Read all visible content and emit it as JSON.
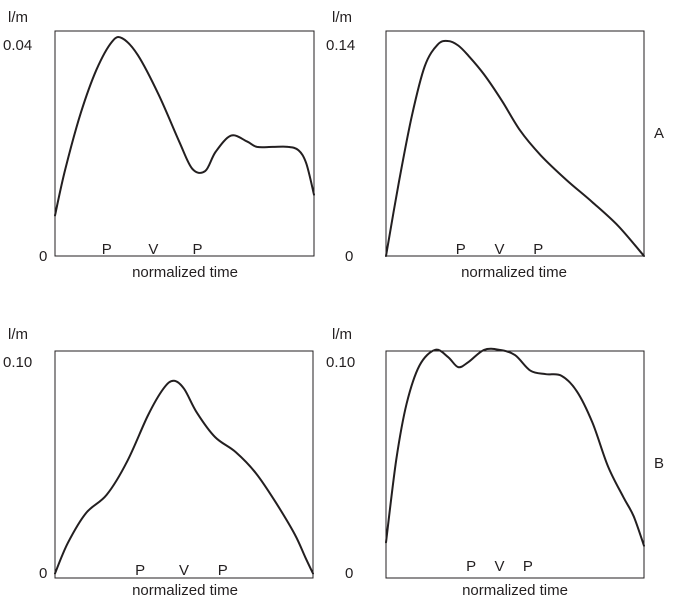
{
  "row_labels": [
    "A",
    "B"
  ],
  "chart_data": [
    {
      "type": "line",
      "title": "",
      "xlabel": "normalized time",
      "ylabel": "l/m",
      "xlim": [
        0,
        1
      ],
      "ylim": [
        0,
        0.04
      ],
      "y_ticks": [
        "0.04",
        "0"
      ],
      "markers": [
        {
          "label": "P",
          "x": 0.2
        },
        {
          "label": "V",
          "x": 0.38
        },
        {
          "label": "P",
          "x": 0.55
        }
      ],
      "x": [
        0,
        0.04,
        0.1,
        0.16,
        0.22,
        0.26,
        0.32,
        0.4,
        0.48,
        0.53,
        0.58,
        0.62,
        0.68,
        0.74,
        0.78,
        0.84,
        0.9,
        0.94,
        0.97,
        1.0
      ],
      "y": [
        0.0072,
        0.0155,
        0.0255,
        0.0331,
        0.0381,
        0.0387,
        0.0357,
        0.0287,
        0.0203,
        0.0155,
        0.0151,
        0.0185,
        0.0214,
        0.0204,
        0.0194,
        0.0194,
        0.0194,
        0.0188,
        0.0165,
        0.0109
      ]
    },
    {
      "type": "line",
      "title": "",
      "xlabel": "normalized time",
      "ylabel": "l/m",
      "xlim": [
        0,
        1
      ],
      "ylim": [
        0,
        0.14
      ],
      "y_ticks": [
        "0.14",
        "0"
      ],
      "markers": [
        {
          "label": "P",
          "x": 0.29
        },
        {
          "label": "V",
          "x": 0.44
        },
        {
          "label": "P",
          "x": 0.59
        }
      ],
      "x": [
        0,
        0.05,
        0.1,
        0.15,
        0.2,
        0.24,
        0.28,
        0.32,
        0.38,
        0.45,
        0.52,
        0.6,
        0.7,
        0.8,
        0.9,
        1.0
      ],
      "y": [
        0.0,
        0.046,
        0.087,
        0.118,
        0.1315,
        0.1338,
        0.131,
        0.1245,
        0.113,
        0.0964,
        0.078,
        0.0626,
        0.0472,
        0.0335,
        0.0187,
        0.0
      ]
    },
    {
      "type": "line",
      "title": "",
      "xlabel": "normalized time",
      "ylabel": "l/m",
      "xlim": [
        0,
        1
      ],
      "ylim": [
        0,
        0.1
      ],
      "y_ticks": [
        "0.10",
        "0"
      ],
      "markers": [
        {
          "label": "P",
          "x": 0.33
        },
        {
          "label": "V",
          "x": 0.5
        },
        {
          "label": "P",
          "x": 0.65
        }
      ],
      "x": [
        0,
        0.05,
        0.12,
        0.2,
        0.28,
        0.36,
        0.42,
        0.46,
        0.5,
        0.55,
        0.62,
        0.7,
        0.78,
        0.86,
        0.93,
        0.97,
        1.0
      ],
      "y": [
        0.002,
        0.0155,
        0.0286,
        0.0366,
        0.0514,
        0.0716,
        0.0834,
        0.0869,
        0.0834,
        0.0728,
        0.0621,
        0.0555,
        0.046,
        0.0325,
        0.0191,
        0.0091,
        0.002
      ]
    },
    {
      "type": "line",
      "title": "",
      "xlabel": "normalized time",
      "ylabel": "l/m",
      "xlim": [
        0,
        1
      ],
      "ylim": [
        0,
        0.1
      ],
      "y_ticks": [
        "0.10",
        "0"
      ],
      "markers": [
        {
          "label": "P",
          "x": 0.33
        },
        {
          "label": "V",
          "x": 0.44
        },
        {
          "label": "P",
          "x": 0.55
        }
      ],
      "x": [
        0,
        0.04,
        0.08,
        0.13,
        0.19,
        0.24,
        0.28,
        0.32,
        0.38,
        0.44,
        0.5,
        0.56,
        0.62,
        0.68,
        0.74,
        0.8,
        0.86,
        0.92,
        0.96,
        1.0
      ],
      "y": [
        0.0157,
        0.0523,
        0.0768,
        0.0936,
        0.1005,
        0.0974,
        0.0929,
        0.0952,
        0.1005,
        0.1005,
        0.0982,
        0.0913,
        0.0898,
        0.0891,
        0.0822,
        0.0685,
        0.0493,
        0.0356,
        0.0272,
        0.0142
      ]
    }
  ]
}
